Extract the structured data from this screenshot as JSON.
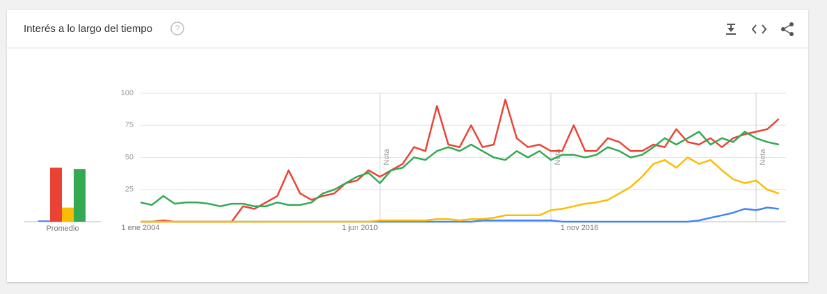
{
  "header": {
    "title": "Interés a lo largo del tiempo"
  },
  "chart_data": [
    {
      "type": "line",
      "x": [
        "2004-01-01",
        "2004-05-01",
        "2004-09-01",
        "2005-01-01",
        "2005-05-01",
        "2005-09-01",
        "2006-01-01",
        "2006-05-01",
        "2006-09-01",
        "2007-01-01",
        "2007-05-01",
        "2007-09-01",
        "2008-01-01",
        "2008-05-01",
        "2008-09-01",
        "2009-01-01",
        "2009-05-01",
        "2009-09-01",
        "2010-01-01",
        "2010-05-01",
        "2010-09-01",
        "2011-01-01",
        "2011-05-01",
        "2011-09-01",
        "2012-01-01",
        "2012-05-01",
        "2012-09-01",
        "2013-01-01",
        "2013-05-01",
        "2013-09-01",
        "2014-01-01",
        "2014-05-01",
        "2014-09-01",
        "2015-01-01",
        "2015-05-01",
        "2015-09-01",
        "2016-01-01",
        "2016-05-01",
        "2016-09-01",
        "2017-01-01",
        "2017-05-01",
        "2017-09-01",
        "2018-01-01",
        "2018-05-01",
        "2018-09-01",
        "2019-01-01",
        "2019-05-01",
        "2019-09-01",
        "2020-01-01",
        "2020-05-01",
        "2020-09-01",
        "2021-01-01",
        "2021-05-01",
        "2021-09-01",
        "2022-01-01",
        "2022-05-01",
        "2022-09-01"
      ],
      "series": [
        {
          "color": "#4285f4",
          "values": [
            0,
            0,
            0,
            0,
            0,
            0,
            0,
            0,
            0,
            0,
            0,
            0,
            0,
            0,
            0,
            0,
            0,
            0,
            0,
            0,
            0,
            0,
            0,
            0,
            0,
            0,
            0,
            0,
            0,
            0,
            1,
            1,
            1,
            1,
            1,
            1,
            1,
            0,
            0,
            0,
            0,
            0,
            0,
            0,
            0,
            0,
            0,
            0,
            0,
            1,
            3,
            5,
            7,
            10,
            9,
            11,
            10
          ]
        },
        {
          "color": "#ea4335",
          "values": [
            0,
            0,
            1,
            0,
            0,
            0,
            0,
            0,
            0,
            12,
            10,
            15,
            20,
            40,
            22,
            17,
            20,
            22,
            30,
            32,
            40,
            35,
            40,
            45,
            58,
            55,
            90,
            60,
            58,
            75,
            58,
            60,
            95,
            65,
            58,
            60,
            55,
            55,
            75,
            55,
            55,
            65,
            62,
            55,
            55,
            60,
            58,
            72,
            62,
            60,
            65,
            58,
            65,
            68,
            70,
            72,
            80
          ]
        },
        {
          "color": "#fbbc04",
          "values": [
            0,
            0,
            0,
            0,
            0,
            0,
            0,
            0,
            0,
            0,
            0,
            0,
            0,
            0,
            0,
            0,
            0,
            0,
            0,
            0,
            0,
            1,
            1,
            1,
            1,
            1,
            2,
            2,
            1,
            2,
            2,
            3,
            5,
            5,
            5,
            5,
            9,
            10,
            12,
            14,
            15,
            17,
            22,
            27,
            35,
            45,
            48,
            42,
            50,
            45,
            48,
            40,
            33,
            30,
            32,
            25,
            22
          ]
        },
        {
          "color": "#34a853",
          "values": [
            15,
            13,
            20,
            14,
            15,
            15,
            14,
            12,
            14,
            14,
            12,
            12,
            15,
            13,
            13,
            15,
            22,
            25,
            30,
            35,
            38,
            30,
            40,
            42,
            50,
            48,
            55,
            58,
            55,
            60,
            55,
            50,
            48,
            55,
            50,
            55,
            48,
            52,
            52,
            50,
            52,
            58,
            55,
            50,
            52,
            58,
            65,
            60,
            65,
            70,
            60,
            65,
            62,
            70,
            65,
            62,
            60
          ]
        }
      ],
      "xlim": [
        "2004-01-01",
        "2022-11-01"
      ],
      "xticks": [
        {
          "value": "2004-01-01",
          "label": "1 ene 2004"
        },
        {
          "value": "2010-06-01",
          "label": "1 jun 2010"
        },
        {
          "value": "2016-11-01",
          "label": "1 nov 2016"
        }
      ],
      "ylim": [
        0,
        100
      ],
      "yticks": [
        25,
        50,
        75,
        100
      ],
      "grid": true,
      "annotations": [
        {
          "x": "2011-01-01",
          "label": "Nota"
        },
        {
          "x": "2016-01-01",
          "label": "Nota"
        },
        {
          "x": "2022-01-01",
          "label": "Nota"
        }
      ]
    },
    {
      "type": "bar",
      "xlabel": "Promedio",
      "series": [
        {
          "color": "#4285f4",
          "values": [
            1
          ]
        },
        {
          "color": "#ea4335",
          "values": [
            42
          ]
        },
        {
          "color": "#fbbc04",
          "values": [
            11
          ]
        },
        {
          "color": "#34a853",
          "values": [
            41
          ]
        }
      ],
      "ylim": [
        0,
        100
      ]
    }
  ]
}
